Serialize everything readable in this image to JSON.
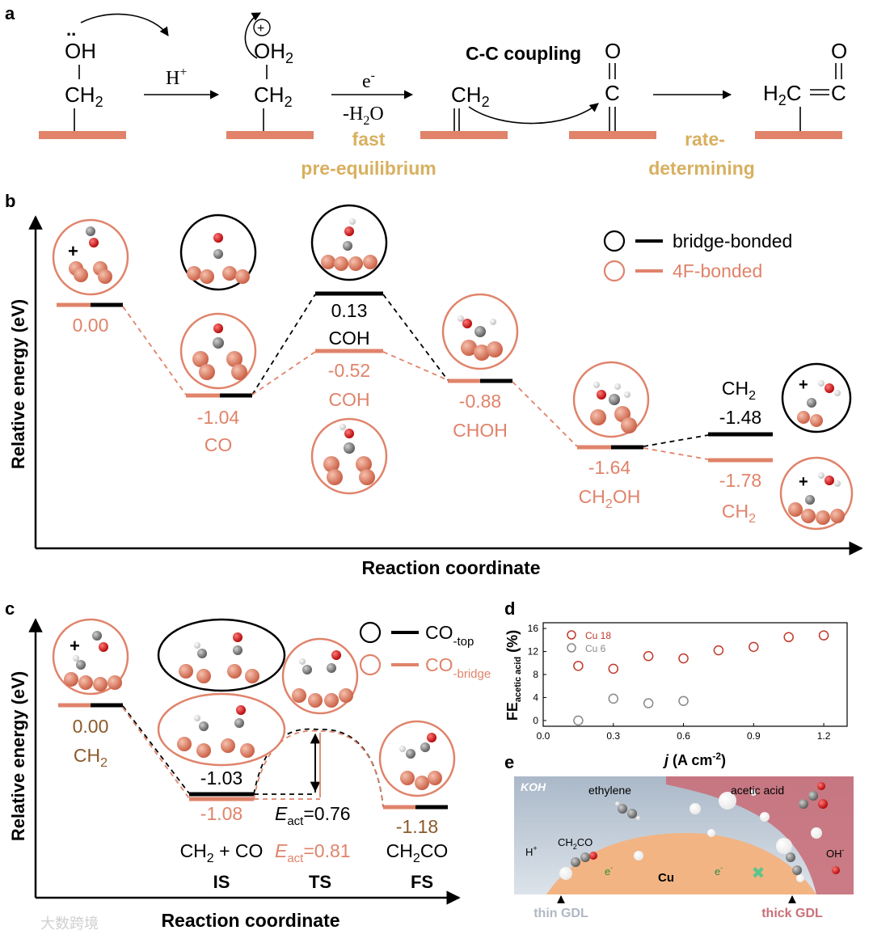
{
  "colors": {
    "copper": "#e0836a",
    "copper_dark": "#d06a52",
    "black": "#000000",
    "gold": "#d8b060",
    "brown": "#8b5a2b",
    "grey": "#888888",
    "panel_e_bg": "#b9c7d6",
    "panel_e_red": "#c9707a",
    "cu_orange": "#f2b483"
  },
  "panel_a": {
    "letter": "a",
    "oh_dots": "..",
    "oh": "OH",
    "ch2": "CH2",
    "h_plus": "H+",
    "plus_charge": "+",
    "oh2": "OH2",
    "e_minus": "e-",
    "minus_h2o": "-H2O",
    "fast": "fast",
    "pre_eq": "pre-equilibrium",
    "cc_coupling": "C-C coupling",
    "o": "O",
    "c": "C",
    "h2c_c": "H2C",
    "rate": "rate-",
    "determining": "determining"
  },
  "panel_b": {
    "letter": "b",
    "ylabel": "Relative energy (eV)",
    "xlabel": "Reaction coordinate",
    "legend": [
      {
        "label": "bridge-bonded",
        "color": "#000000"
      },
      {
        "label": "4F-bonded",
        "color": "#e0836a"
      }
    ],
    "levels": [
      {
        "value": "0.00",
        "name": ""
      },
      {
        "value": "-1.04",
        "name": "CO"
      },
      {
        "value": "0.13",
        "name": "COH"
      },
      {
        "value": "-0.52",
        "name": "COH"
      },
      {
        "value": "-0.88",
        "name": "CHOH"
      },
      {
        "value": "-1.64",
        "name": "CH2OH"
      },
      {
        "value": "-1.48",
        "name": "CH2"
      },
      {
        "value": "-1.78",
        "name": "CH2"
      }
    ],
    "plus": "+"
  },
  "panel_c": {
    "letter": "c",
    "ylabel": "Relative energy (eV)",
    "xlabel": "Reaction coordinate",
    "legend": [
      {
        "label": "CO",
        "sub": "-top",
        "color": "#000000"
      },
      {
        "label": "CO",
        "sub": "-bridge",
        "color": "#e0836a"
      }
    ],
    "is_zero": "0.00",
    "is_zero_name": "CH2",
    "is_top": "-1.03",
    "is_bridge": "-1.08",
    "eact_top": "=0.76",
    "eact_bridge": "=0.81",
    "e_sym": "E",
    "e_sub": "act",
    "is_species": "CH2 + CO",
    "fs_value": "-1.18",
    "fs_species": "CH2CO",
    "states": [
      "IS",
      "TS",
      "FS"
    ],
    "plus": "+"
  },
  "panel_d": {
    "letter": "d",
    "ylabel_main": "FE",
    "ylabel_sub": "acetic acid",
    "ylabel_unit": "(%)",
    "xlabel_j": "j",
    "xlabel_rest": "(A cm",
    "xlabel_exp": "-2",
    "xlabel_close": ")",
    "chart_data": {
      "type": "scatter",
      "x_ticks": [
        "0.0",
        "0.3",
        "0.6",
        "0.9",
        "1.2"
      ],
      "y_ticks": [
        "0",
        "4",
        "8",
        "12",
        "16"
      ],
      "xlim": [
        0,
        1.3
      ],
      "ylim": [
        -1,
        17
      ],
      "series": [
        {
          "name": "Cu 18",
          "color": "#c0392b",
          "x": [
            0.15,
            0.3,
            0.45,
            0.6,
            0.75,
            0.9,
            1.05,
            1.2
          ],
          "y": [
            9.5,
            9.0,
            11.2,
            10.8,
            12.2,
            12.8,
            14.5,
            14.8
          ]
        },
        {
          "name": "Cu 6",
          "color": "#888888",
          "x": [
            0.15,
            0.3,
            0.45,
            0.6
          ],
          "y": [
            0.0,
            3.8,
            3.0,
            3.4
          ]
        }
      ]
    }
  },
  "panel_e": {
    "letter": "e",
    "koh": "KOH",
    "ethylene": "ethylene",
    "acetic_acid": "acetic acid",
    "ch2co": "CH2CO",
    "h_plus": "H+",
    "e_minus": "e-",
    "cu": "Cu",
    "oh_minus": "OH-",
    "thin_gdl": "thin GDL",
    "thick_gdl": "thick GDL"
  },
  "watermark": "大数跨境"
}
